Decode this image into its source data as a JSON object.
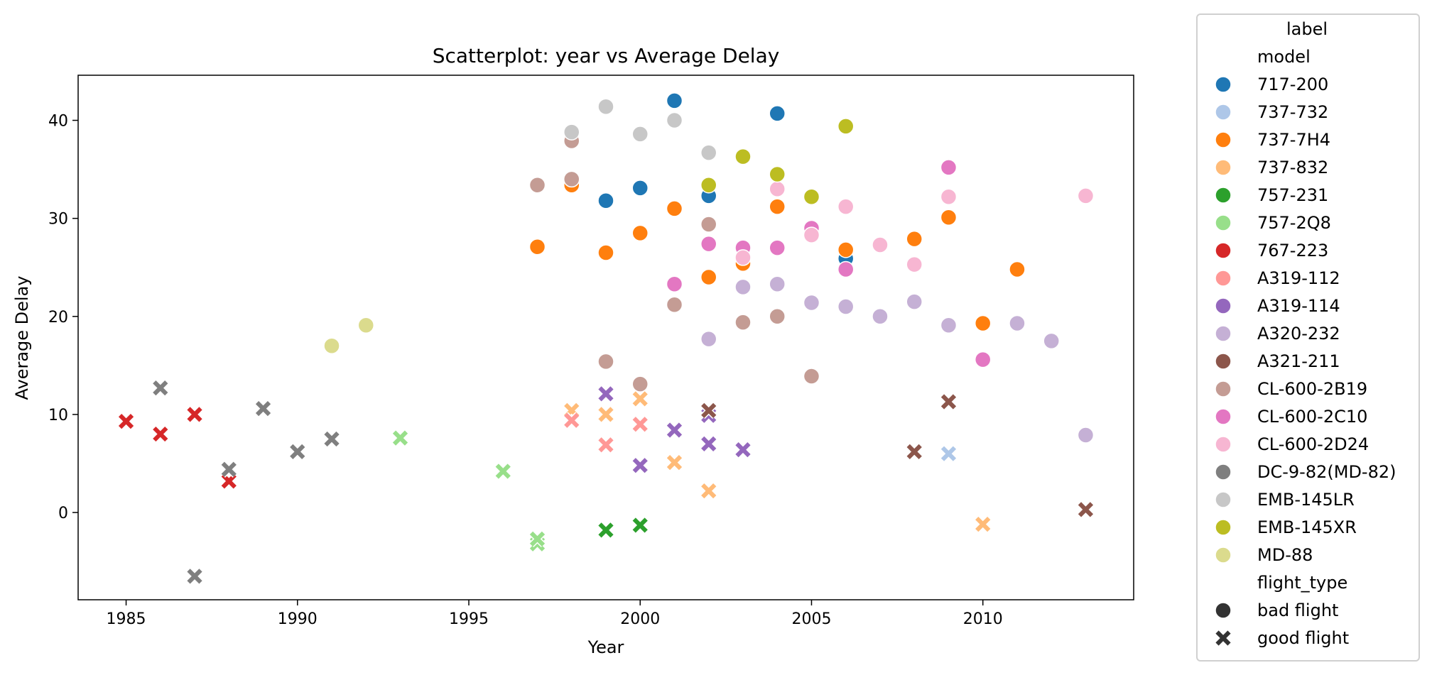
{
  "chart_data": {
    "type": "scatter",
    "title": "Scatterplot: year vs Average Delay",
    "xlabel": "Year",
    "ylabel": "Average Delay",
    "xlim": [
      1983.6,
      2014.4
    ],
    "ylim": [
      -8.9,
      44.6
    ],
    "xticks": [
      1985,
      1990,
      1995,
      2000,
      2005,
      2010
    ],
    "yticks": [
      0,
      10,
      20,
      30,
      40
    ],
    "grid": false,
    "legend": {
      "title": "label",
      "placement": "outside-right",
      "hue_title": "model",
      "style_title": "flight_type",
      "styles": [
        {
          "name": "bad flight",
          "marker": "circle"
        },
        {
          "name": "good flight",
          "marker": "x"
        }
      ]
    },
    "series": [
      {
        "name": "717-200",
        "color": "#1f77b4",
        "points": [
          {
            "x": 1999,
            "y": 31.8,
            "type": "bad flight"
          },
          {
            "x": 2000,
            "y": 33.1,
            "type": "bad flight"
          },
          {
            "x": 2001,
            "y": 42.0,
            "type": "bad flight"
          },
          {
            "x": 2002,
            "y": 32.3,
            "type": "bad flight"
          },
          {
            "x": 2004,
            "y": 40.7,
            "type": "bad flight"
          },
          {
            "x": 2006,
            "y": 25.9,
            "type": "bad flight"
          }
        ]
      },
      {
        "name": "737-732",
        "color": "#aec7e8",
        "points": [
          {
            "x": 2009,
            "y": 6.0,
            "type": "good flight"
          }
        ]
      },
      {
        "name": "737-7H4",
        "color": "#ff7f0e",
        "points": [
          {
            "x": 1997,
            "y": 27.1,
            "type": "bad flight"
          },
          {
            "x": 1998,
            "y": 33.4,
            "type": "bad flight"
          },
          {
            "x": 1999,
            "y": 26.5,
            "type": "bad flight"
          },
          {
            "x": 2000,
            "y": 28.5,
            "type": "bad flight"
          },
          {
            "x": 2001,
            "y": 31.0,
            "type": "bad flight"
          },
          {
            "x": 2002,
            "y": 24.0,
            "type": "bad flight"
          },
          {
            "x": 2003,
            "y": 25.4,
            "type": "bad flight"
          },
          {
            "x": 2004,
            "y": 31.2,
            "type": "bad flight"
          },
          {
            "x": 2006,
            "y": 26.8,
            "type": "bad flight"
          },
          {
            "x": 2008,
            "y": 27.9,
            "type": "bad flight"
          },
          {
            "x": 2009,
            "y": 30.1,
            "type": "bad flight"
          },
          {
            "x": 2010,
            "y": 19.3,
            "type": "bad flight"
          },
          {
            "x": 2011,
            "y": 24.8,
            "type": "bad flight"
          }
        ]
      },
      {
        "name": "737-832",
        "color": "#ffbb78",
        "points": [
          {
            "x": 1998,
            "y": 10.4,
            "type": "good flight"
          },
          {
            "x": 1999,
            "y": 10.0,
            "type": "good flight"
          },
          {
            "x": 2000,
            "y": 11.6,
            "type": "good flight"
          },
          {
            "x": 2001,
            "y": 5.1,
            "type": "good flight"
          },
          {
            "x": 2002,
            "y": 2.2,
            "type": "good flight"
          },
          {
            "x": 2010,
            "y": -1.2,
            "type": "good flight"
          }
        ]
      },
      {
        "name": "757-231",
        "color": "#2ca02c",
        "points": [
          {
            "x": 1999,
            "y": -1.8,
            "type": "good flight"
          },
          {
            "x": 2000,
            "y": -1.3,
            "type": "good flight"
          }
        ]
      },
      {
        "name": "757-2Q8",
        "color": "#98df8a",
        "points": [
          {
            "x": 1993,
            "y": 7.6,
            "type": "good flight"
          },
          {
            "x": 1996,
            "y": 4.2,
            "type": "good flight"
          },
          {
            "x": 1997,
            "y": -3.2,
            "type": "good flight"
          },
          {
            "x": 1997,
            "y": -2.7,
            "type": "good flight"
          }
        ]
      },
      {
        "name": "767-223",
        "color": "#d62728",
        "points": [
          {
            "x": 1985,
            "y": 9.3,
            "type": "good flight"
          },
          {
            "x": 1986,
            "y": 8.0,
            "type": "good flight"
          },
          {
            "x": 1987,
            "y": 10.0,
            "type": "good flight"
          },
          {
            "x": 1988,
            "y": 3.2,
            "type": "good flight"
          }
        ]
      },
      {
        "name": "A319-112",
        "color": "#ff9896",
        "points": [
          {
            "x": 1998,
            "y": 9.4,
            "type": "good flight"
          },
          {
            "x": 1999,
            "y": 6.9,
            "type": "good flight"
          },
          {
            "x": 2000,
            "y": 9.0,
            "type": "good flight"
          }
        ]
      },
      {
        "name": "A319-114",
        "color": "#9467bd",
        "points": [
          {
            "x": 1999,
            "y": 12.1,
            "type": "good flight"
          },
          {
            "x": 2000,
            "y": 4.8,
            "type": "good flight"
          },
          {
            "x": 2001,
            "y": 8.4,
            "type": "good flight"
          },
          {
            "x": 2002,
            "y": 7.0,
            "type": "good flight"
          },
          {
            "x": 2002,
            "y": 9.9,
            "type": "good flight"
          },
          {
            "x": 2003,
            "y": 6.4,
            "type": "good flight"
          }
        ]
      },
      {
        "name": "A320-232",
        "color": "#c5b0d5",
        "points": [
          {
            "x": 2002,
            "y": 17.7,
            "type": "bad flight"
          },
          {
            "x": 2003,
            "y": 23.0,
            "type": "bad flight"
          },
          {
            "x": 2004,
            "y": 23.3,
            "type": "bad flight"
          },
          {
            "x": 2005,
            "y": 21.4,
            "type": "bad flight"
          },
          {
            "x": 2006,
            "y": 21.0,
            "type": "bad flight"
          },
          {
            "x": 2007,
            "y": 20.0,
            "type": "bad flight"
          },
          {
            "x": 2008,
            "y": 21.5,
            "type": "bad flight"
          },
          {
            "x": 2009,
            "y": 19.1,
            "type": "bad flight"
          },
          {
            "x": 2011,
            "y": 19.3,
            "type": "bad flight"
          },
          {
            "x": 2012,
            "y": 17.5,
            "type": "bad flight"
          },
          {
            "x": 2013,
            "y": 7.9,
            "type": "bad flight"
          }
        ]
      },
      {
        "name": "A321-211",
        "color": "#8c564b",
        "points": [
          {
            "x": 2002,
            "y": 10.4,
            "type": "good flight"
          },
          {
            "x": 2008,
            "y": 6.2,
            "type": "good flight"
          },
          {
            "x": 2009,
            "y": 11.3,
            "type": "good flight"
          },
          {
            "x": 2013,
            "y": 0.3,
            "type": "good flight"
          }
        ]
      },
      {
        "name": "CL-600-2B19",
        "color": "#c49c94",
        "points": [
          {
            "x": 1997,
            "y": 33.4,
            "type": "bad flight"
          },
          {
            "x": 1998,
            "y": 37.9,
            "type": "bad flight"
          },
          {
            "x": 1998,
            "y": 34.0,
            "type": "bad flight"
          },
          {
            "x": 1999,
            "y": 15.4,
            "type": "bad flight"
          },
          {
            "x": 2000,
            "y": 13.1,
            "type": "bad flight"
          },
          {
            "x": 2001,
            "y": 21.2,
            "type": "bad flight"
          },
          {
            "x": 2002,
            "y": 29.4,
            "type": "bad flight"
          },
          {
            "x": 2003,
            "y": 19.4,
            "type": "bad flight"
          },
          {
            "x": 2004,
            "y": 20.0,
            "type": "bad flight"
          },
          {
            "x": 2005,
            "y": 13.9,
            "type": "bad flight"
          }
        ]
      },
      {
        "name": "CL-600-2C10",
        "color": "#e377c2",
        "points": [
          {
            "x": 2001,
            "y": 23.3,
            "type": "bad flight"
          },
          {
            "x": 2002,
            "y": 27.4,
            "type": "bad flight"
          },
          {
            "x": 2003,
            "y": 27.0,
            "type": "bad flight"
          },
          {
            "x": 2004,
            "y": 27.0,
            "type": "bad flight"
          },
          {
            "x": 2005,
            "y": 29.0,
            "type": "bad flight"
          },
          {
            "x": 2006,
            "y": 24.8,
            "type": "bad flight"
          },
          {
            "x": 2009,
            "y": 35.2,
            "type": "bad flight"
          },
          {
            "x": 2010,
            "y": 15.6,
            "type": "bad flight"
          }
        ]
      },
      {
        "name": "CL-600-2D24",
        "color": "#f7b6d2",
        "points": [
          {
            "x": 2003,
            "y": 26.0,
            "type": "bad flight"
          },
          {
            "x": 2004,
            "y": 33.0,
            "type": "bad flight"
          },
          {
            "x": 2005,
            "y": 28.3,
            "type": "bad flight"
          },
          {
            "x": 2006,
            "y": 31.2,
            "type": "bad flight"
          },
          {
            "x": 2007,
            "y": 27.3,
            "type": "bad flight"
          },
          {
            "x": 2008,
            "y": 25.3,
            "type": "bad flight"
          },
          {
            "x": 2009,
            "y": 32.2,
            "type": "bad flight"
          },
          {
            "x": 2013,
            "y": 32.3,
            "type": "bad flight"
          }
        ]
      },
      {
        "name": "DC-9-82(MD-82)",
        "color": "#7f7f7f",
        "points": [
          {
            "x": 1986,
            "y": 12.7,
            "type": "good flight"
          },
          {
            "x": 1987,
            "y": -6.5,
            "type": "good flight"
          },
          {
            "x": 1988,
            "y": 4.4,
            "type": "good flight"
          },
          {
            "x": 1989,
            "y": 10.6,
            "type": "good flight"
          },
          {
            "x": 1990,
            "y": 6.2,
            "type": "good flight"
          },
          {
            "x": 1991,
            "y": 7.5,
            "type": "good flight"
          }
        ]
      },
      {
        "name": "EMB-145LR",
        "color": "#c7c7c7",
        "points": [
          {
            "x": 1998,
            "y": 38.8,
            "type": "bad flight"
          },
          {
            "x": 1999,
            "y": 41.4,
            "type": "bad flight"
          },
          {
            "x": 2000,
            "y": 38.6,
            "type": "bad flight"
          },
          {
            "x": 2001,
            "y": 40.0,
            "type": "bad flight"
          },
          {
            "x": 2002,
            "y": 36.7,
            "type": "bad flight"
          }
        ]
      },
      {
        "name": "EMB-145XR",
        "color": "#bcbd22",
        "points": [
          {
            "x": 2002,
            "y": 33.4,
            "type": "bad flight"
          },
          {
            "x": 2003,
            "y": 36.3,
            "type": "bad flight"
          },
          {
            "x": 2004,
            "y": 34.5,
            "type": "bad flight"
          },
          {
            "x": 2005,
            "y": 32.2,
            "type": "bad flight"
          },
          {
            "x": 2006,
            "y": 39.4,
            "type": "bad flight"
          }
        ]
      },
      {
        "name": "MD-88",
        "color": "#dbdb8d",
        "points": [
          {
            "x": 1991,
            "y": 17.0,
            "type": "bad flight"
          },
          {
            "x": 1992,
            "y": 19.1,
            "type": "bad flight"
          }
        ]
      }
    ]
  }
}
